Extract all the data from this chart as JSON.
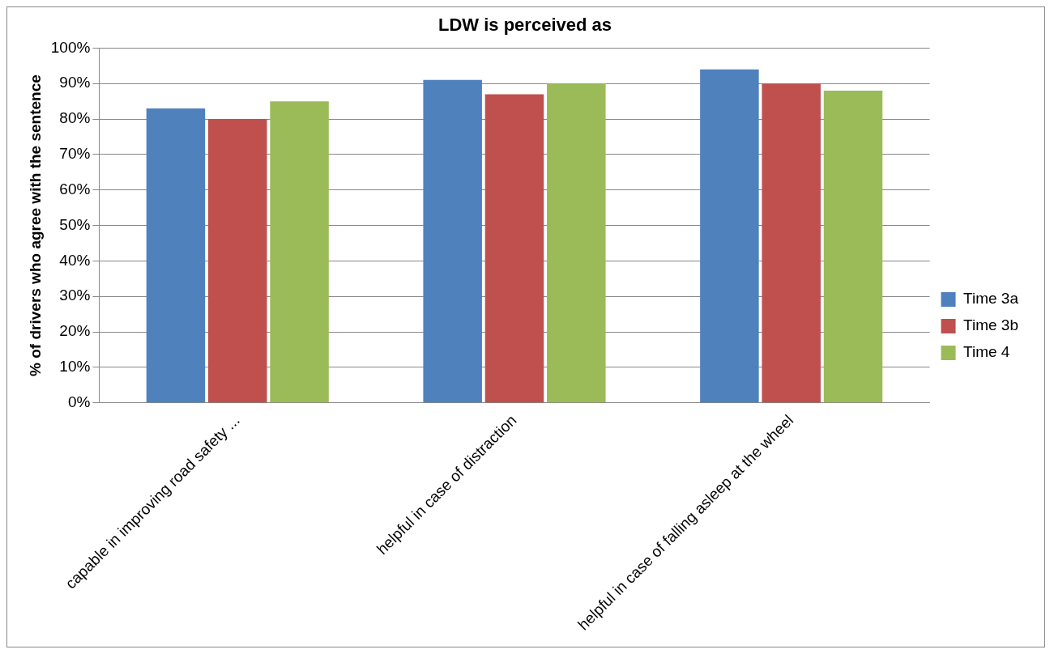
{
  "chart_data": {
    "type": "bar",
    "title": "LDW is perceived as",
    "ylabel": "% of drivers who agree with the sentence",
    "categories": [
      "capable in improving road safety ...",
      "helpful in case of distraction",
      "helpful in case of falling asleep at the wheel"
    ],
    "series": [
      {
        "name": "Time 3a",
        "color": "#4f81bd",
        "values": [
          83,
          91,
          94
        ]
      },
      {
        "name": "Time 3b",
        "color": "#c0504d",
        "values": [
          80,
          87,
          90
        ]
      },
      {
        "name": "Time 4",
        "color": "#9bbb59",
        "values": [
          85,
          90,
          88
        ]
      }
    ],
    "ylim": [
      0,
      100
    ],
    "yticks": [
      {
        "value": 0,
        "label": "0%"
      },
      {
        "value": 10,
        "label": "10%"
      },
      {
        "value": 20,
        "label": "20%"
      },
      {
        "value": 30,
        "label": "30%"
      },
      {
        "value": 40,
        "label": "40%"
      },
      {
        "value": 50,
        "label": "50%"
      },
      {
        "value": 60,
        "label": "60%"
      },
      {
        "value": 70,
        "label": "70%"
      },
      {
        "value": 80,
        "label": "80%"
      },
      {
        "value": 90,
        "label": "90%"
      },
      {
        "value": 100,
        "label": "100%"
      }
    ],
    "grid": "y",
    "legend": "right"
  }
}
